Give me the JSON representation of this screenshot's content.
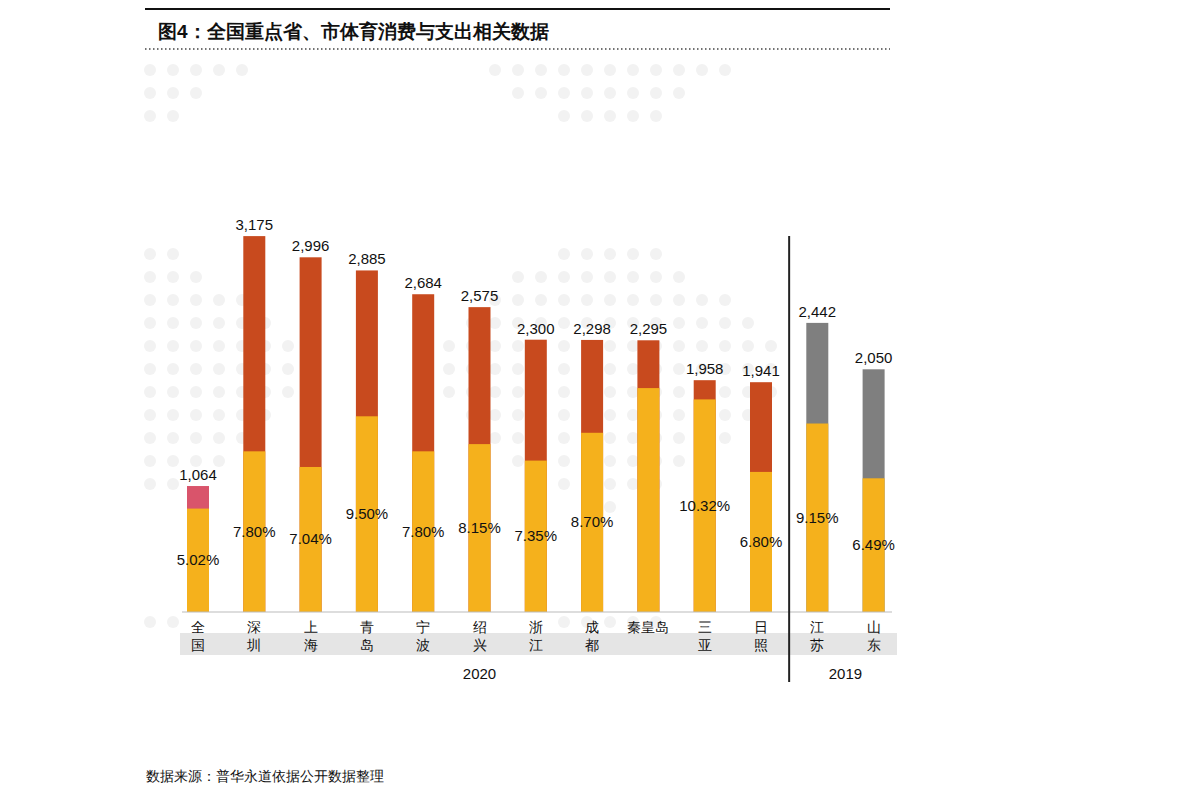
{
  "chart_data": {
    "type": "bar",
    "title": "图4：全国重点省、市体育消费与支出相关数据",
    "source": "数据来源：普华永道依据公开数据整理",
    "categories": [
      "全国",
      "深圳",
      "上海",
      "青岛",
      "宁波",
      "绍兴",
      "浙江",
      "成都",
      "秦皇岛",
      "三亚",
      "日照",
      "江苏",
      "山东"
    ],
    "groups": [
      {
        "label": "2020",
        "categories": [
          0,
          1,
          2,
          3,
          4,
          5,
          6,
          7,
          8,
          9,
          10
        ]
      },
      {
        "label": "2019",
        "categories": [
          11,
          12
        ]
      }
    ],
    "series": [
      {
        "colors": [
          "#d9546b",
          "#c84a1e",
          "#c84a1e",
          "#c84a1e",
          "#c84a1e",
          "#c84a1e",
          "#c84a1e",
          "#c84a1e",
          "#c84a1e",
          "#c84a1e",
          "#c84a1e",
          "#7f7f7f",
          "#7f7f7f"
        ],
        "values": [
          1064,
          3175,
          2996,
          2885,
          2684,
          2575,
          2300,
          2298,
          2295,
          1958,
          1941,
          2442,
          2050
        ],
        "value_labels": [
          "1,064",
          "3,175",
          "2,996",
          "2,885",
          "2,684",
          "2,575",
          "2,300",
          "2,298",
          "2,295",
          "1,958",
          "1,941",
          "2,442",
          "2,050"
        ]
      },
      {
        "color": "#f5b11c",
        "axis": "y2",
        "values": [
          5.02,
          7.8,
          7.04,
          9.5,
          7.8,
          8.15,
          7.35,
          8.7,
          10.87,
          10.32,
          6.8,
          9.15,
          6.49
        ],
        "value_labels": [
          "5.02%",
          "7.80%",
          "7.04%",
          "9.50%",
          "7.80%",
          "8.15%",
          "7.35%",
          "8.70%",
          null,
          "10.32%",
          "6.80%",
          "9.15%",
          "6.49%"
        ]
      }
    ],
    "ylim": [
      0,
      3480
    ],
    "y2lim": [
      0,
      20
    ],
    "stacked": false,
    "data_labels": true,
    "tick_labels": false,
    "grid": false
  }
}
